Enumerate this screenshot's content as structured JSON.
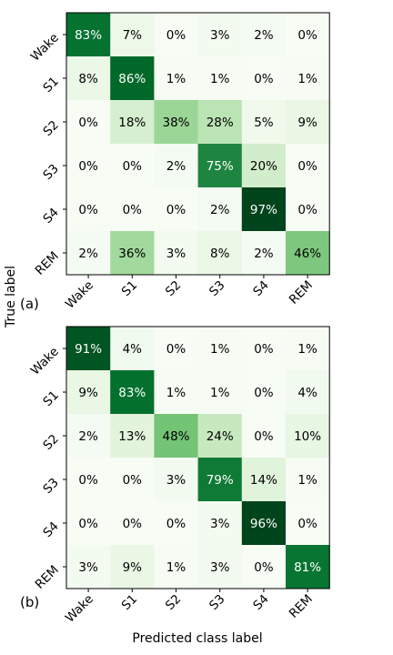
{
  "shared": {
    "ylabel": "True label",
    "xlabel": "Predicted class label"
  },
  "chart_data": [
    {
      "type": "heatmap",
      "panel_label": "(a)",
      "row_labels": [
        "Wake",
        "S1",
        "S2",
        "S3",
        "S4",
        "REM"
      ],
      "col_labels": [
        "Wake",
        "S1",
        "S2",
        "S3",
        "S4",
        "REM"
      ],
      "values": [
        [
          83,
          7,
          0,
          3,
          2,
          0
        ],
        [
          8,
          86,
          1,
          1,
          0,
          1
        ],
        [
          0,
          18,
          38,
          28,
          5,
          9
        ],
        [
          0,
          0,
          2,
          75,
          20,
          0
        ],
        [
          0,
          0,
          0,
          2,
          97,
          0
        ],
        [
          2,
          36,
          3,
          8,
          2,
          46
        ]
      ],
      "unit": "%",
      "colormap": "Greens"
    },
    {
      "type": "heatmap",
      "panel_label": "(b)",
      "row_labels": [
        "Wake",
        "S1",
        "S2",
        "S3",
        "S4",
        "REM"
      ],
      "col_labels": [
        "Wake",
        "S1",
        "S2",
        "S3",
        "S4",
        "REM"
      ],
      "values": [
        [
          91,
          4,
          0,
          1,
          0,
          1
        ],
        [
          9,
          83,
          1,
          1,
          0,
          4
        ],
        [
          2,
          13,
          48,
          24,
          0,
          10
        ],
        [
          0,
          0,
          3,
          79,
          14,
          1
        ],
        [
          0,
          0,
          0,
          3,
          96,
          0
        ],
        [
          3,
          9,
          1,
          3,
          0,
          81
        ]
      ],
      "unit": "%",
      "colormap": "Greens"
    }
  ]
}
